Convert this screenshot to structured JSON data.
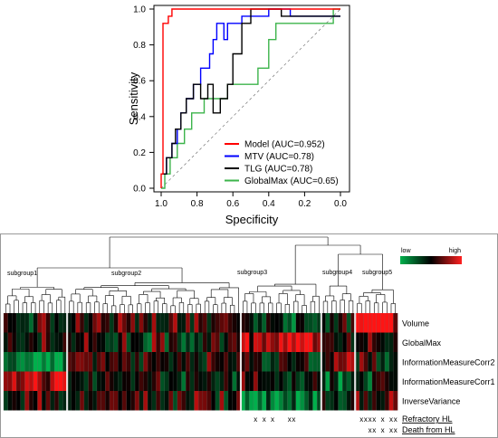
{
  "chart_data": [
    {
      "type": "line",
      "xlabel": "Specificity",
      "ylabel": "Sensitivity",
      "xlim": [
        1.0,
        0.0
      ],
      "ylim": [
        0.0,
        1.0
      ],
      "x_ticks": [
        "1.0",
        "0.8",
        "0.6",
        "0.4",
        "0.2",
        "0.0"
      ],
      "y_ticks": [
        "0.0",
        "0.2",
        "0.4",
        "0.6",
        "0.8",
        "1.0"
      ],
      "legend_position": "bottom-right",
      "reference_line": "diagonal dashed",
      "series": [
        {
          "name": "Model (AUC=0.952)",
          "color": "#ff0000",
          "x": [
            1.0,
            1.0,
            0.99,
            0.99,
            0.96,
            0.96,
            0.94,
            0.94,
            0.0
          ],
          "y": [
            0.0,
            0.08,
            0.08,
            0.92,
            0.92,
            0.96,
            0.96,
            1.0,
            1.0
          ]
        },
        {
          "name": "MTV (AUC=0.78)",
          "color": "#0000ff",
          "x": [
            1.0,
            0.97,
            0.97,
            0.94,
            0.94,
            0.91,
            0.91,
            0.89,
            0.89,
            0.86,
            0.86,
            0.82,
            0.82,
            0.78,
            0.78,
            0.73,
            0.73,
            0.71,
            0.71,
            0.69,
            0.69,
            0.65,
            0.65,
            0.63,
            0.63,
            0.55,
            0.55,
            0.4,
            0.4,
            0.28,
            0.28,
            0.0
          ],
          "y": [
            0.08,
            0.08,
            0.17,
            0.17,
            0.25,
            0.25,
            0.33,
            0.33,
            0.42,
            0.42,
            0.5,
            0.5,
            0.58,
            0.58,
            0.67,
            0.67,
            0.75,
            0.75,
            0.83,
            0.83,
            0.92,
            0.92,
            0.83,
            0.83,
            0.92,
            0.92,
            0.96,
            0.96,
            1.0,
            1.0,
            0.96,
            0.96
          ]
        },
        {
          "name": "TLG (AUC=0.78)",
          "color": "#000000",
          "x": [
            1.0,
            0.97,
            0.97,
            0.94,
            0.94,
            0.92,
            0.92,
            0.89,
            0.89,
            0.86,
            0.86,
            0.82,
            0.82,
            0.78,
            0.78,
            0.74,
            0.74,
            0.71,
            0.71,
            0.67,
            0.67,
            0.63,
            0.63,
            0.6,
            0.6,
            0.55,
            0.55,
            0.5,
            0.5,
            0.33,
            0.33,
            0.0
          ],
          "y": [
            0.08,
            0.08,
            0.17,
            0.17,
            0.25,
            0.25,
            0.33,
            0.33,
            0.42,
            0.42,
            0.5,
            0.5,
            0.58,
            0.58,
            0.5,
            0.5,
            0.58,
            0.58,
            0.42,
            0.42,
            0.5,
            0.5,
            0.58,
            0.58,
            0.75,
            0.75,
            0.92,
            0.92,
            1.0,
            1.0,
            0.96,
            0.96
          ]
        },
        {
          "name": "GlobalMax (AUC=0.65)",
          "color": "#3cb44b",
          "x": [
            1.0,
            0.98,
            0.98,
            0.95,
            0.95,
            0.91,
            0.91,
            0.87,
            0.87,
            0.83,
            0.83,
            0.76,
            0.76,
            0.63,
            0.63,
            0.46,
            0.46,
            0.4,
            0.4,
            0.36,
            0.36,
            0.04,
            0.04,
            0.0
          ],
          "y": [
            0.0,
            0.0,
            0.08,
            0.08,
            0.17,
            0.17,
            0.25,
            0.25,
            0.33,
            0.33,
            0.42,
            0.42,
            0.5,
            0.5,
            0.58,
            0.58,
            0.67,
            0.67,
            0.83,
            0.83,
            0.92,
            0.92,
            1.0,
            1.0
          ]
        }
      ]
    },
    {
      "type": "heatmap",
      "rows": [
        "Volume",
        "GlobalMax",
        "InformationMeasureCorr2",
        "InformationMeasureCorr1",
        "InverseVariance"
      ],
      "subgroups": [
        "subgroup1",
        "subgroup2",
        "subgroup3",
        "subgroup4",
        "subgroup5"
      ],
      "subgroup_columns": [
        15,
        41,
        19,
        8,
        10
      ],
      "legend": {
        "low": "low",
        "high": "high",
        "colors": [
          "#00b04c",
          "#000000",
          "#ff2020"
        ]
      },
      "annotations": [
        {
          "label": "Refractory HL",
          "marker": "x",
          "columns": [
            59,
            61,
            63,
            67,
            68,
            84,
            85,
            86,
            87,
            89,
            91,
            92
          ]
        },
        {
          "label": "Death from HL",
          "marker": "x",
          "columns": [
            86,
            87,
            89,
            91,
            92
          ]
        }
      ],
      "colormap": [
        "#00b04c",
        "#000000",
        "#ff2020"
      ],
      "cluster_profile_note": "Volume high in subgroup5; GlobalMax high in subgroup3; Corr2 low in subgroup1; Corr1 high in subgroup1; InverseVariance low in subgroup3-4"
    }
  ]
}
